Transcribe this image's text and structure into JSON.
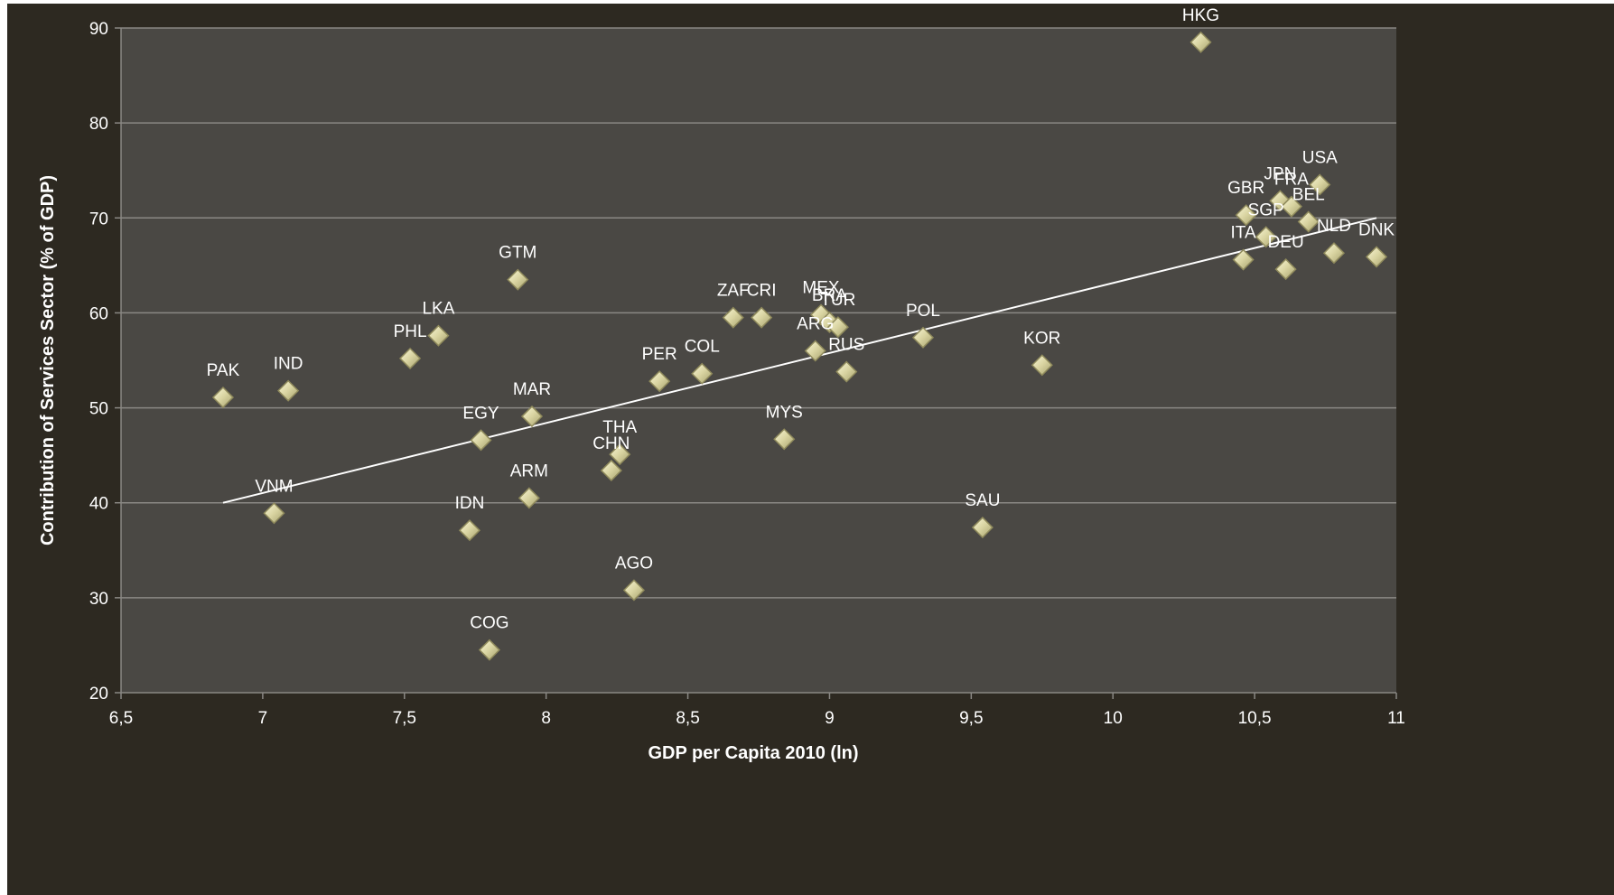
{
  "chart_data": {
    "type": "scatter",
    "title": "",
    "xlabel": "GDP per Capita 2010 (ln)",
    "ylabel": "Contribution of Services Sector (% of GDP)",
    "xlim": [
      6.5,
      11
    ],
    "ylim": [
      20,
      90
    ],
    "x_ticks": [
      "6,5",
      "7",
      "7,5",
      "8",
      "8,5",
      "9",
      "9,5",
      "10",
      "10,5",
      "11"
    ],
    "y_ticks": [
      "20",
      "30",
      "40",
      "50",
      "60",
      "70",
      "80",
      "90"
    ],
    "grid": "horizontal",
    "legend": "none",
    "trendline": {
      "type": "linear",
      "x": [
        6.86,
        10.93
      ],
      "y": [
        40.0,
        70.0
      ]
    },
    "points": [
      {
        "label": "HKG",
        "x": 10.31,
        "y": 88.5
      },
      {
        "label": "USA",
        "x": 10.73,
        "y": 73.5
      },
      {
        "label": "JPN",
        "x": 10.59,
        "y": 71.8
      },
      {
        "label": "FRA",
        "x": 10.63,
        "y": 71.2
      },
      {
        "label": "GBR",
        "x": 10.47,
        "y": 70.3
      },
      {
        "label": "BEL",
        "x": 10.69,
        "y": 69.6
      },
      {
        "label": "SGP",
        "x": 10.54,
        "y": 68.0
      },
      {
        "label": "NLD",
        "x": 10.78,
        "y": 66.3
      },
      {
        "label": "DNK",
        "x": 10.93,
        "y": 65.9
      },
      {
        "label": "ITA",
        "x": 10.46,
        "y": 65.6
      },
      {
        "label": "DEU",
        "x": 10.61,
        "y": 64.6
      },
      {
        "label": "GTM",
        "x": 7.9,
        "y": 63.5
      },
      {
        "label": "ZAF",
        "x": 8.66,
        "y": 59.5
      },
      {
        "label": "CRI",
        "x": 8.76,
        "y": 59.5
      },
      {
        "label": "MEX",
        "x": 8.97,
        "y": 59.8
      },
      {
        "label": "BRA",
        "x": 9.0,
        "y": 59.0
      },
      {
        "label": "TUR",
        "x": 9.03,
        "y": 58.5
      },
      {
        "label": "LKA",
        "x": 7.62,
        "y": 57.6
      },
      {
        "label": "POL",
        "x": 9.33,
        "y": 57.4
      },
      {
        "label": "ARG",
        "x": 8.95,
        "y": 56.0
      },
      {
        "label": "PHL",
        "x": 7.52,
        "y": 55.2
      },
      {
        "label": "KOR",
        "x": 9.75,
        "y": 54.5
      },
      {
        "label": "RUS",
        "x": 9.06,
        "y": 53.8
      },
      {
        "label": "COL",
        "x": 8.55,
        "y": 53.6
      },
      {
        "label": "PER",
        "x": 8.4,
        "y": 52.8
      },
      {
        "label": "IND",
        "x": 7.09,
        "y": 51.8
      },
      {
        "label": "PAK",
        "x": 6.86,
        "y": 51.1
      },
      {
        "label": "MAR",
        "x": 7.95,
        "y": 49.1
      },
      {
        "label": "MYS",
        "x": 8.84,
        "y": 46.7
      },
      {
        "label": "EGY",
        "x": 7.77,
        "y": 46.6
      },
      {
        "label": "THA",
        "x": 8.26,
        "y": 45.1
      },
      {
        "label": "CHN",
        "x": 8.23,
        "y": 43.4
      },
      {
        "label": "ARM",
        "x": 7.94,
        "y": 40.5
      },
      {
        "label": "VNM",
        "x": 7.04,
        "y": 38.9
      },
      {
        "label": "SAU",
        "x": 9.54,
        "y": 37.4
      },
      {
        "label": "IDN",
        "x": 7.73,
        "y": 37.1
      },
      {
        "label": "AGO",
        "x": 8.31,
        "y": 30.8
      },
      {
        "label": "COG",
        "x": 7.8,
        "y": 24.5
      }
    ]
  },
  "colors": {
    "background": "#2d2921",
    "plot_area": "#4a4844",
    "gridline": "#8a8884",
    "marker_fill": "#d8d3a0",
    "marker_edge": "#8f8a5c",
    "trendline": "#ffffff",
    "text": "#ffffff"
  }
}
